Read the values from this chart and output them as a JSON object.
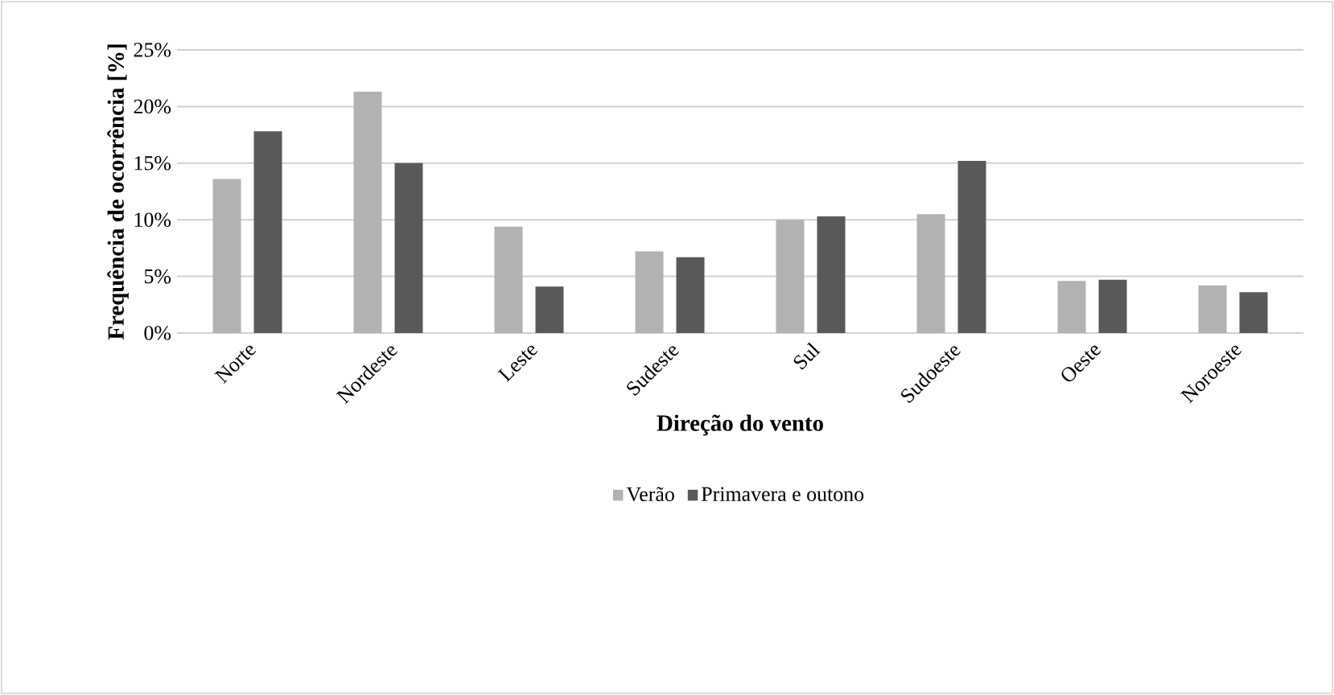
{
  "chart_data": {
    "type": "bar",
    "xlabel": "Direção do vento",
    "ylabel": "Frequência de ocorrência [%]",
    "categories": [
      "Norte",
      "Nordeste",
      "Leste",
      "Sudeste",
      "Sul",
      "Sudoeste",
      "Oeste",
      "Noroeste"
    ],
    "series": [
      {
        "name": "Verão",
        "color": "#b2b2b2",
        "values": [
          13.6,
          21.3,
          9.4,
          7.2,
          10.0,
          10.5,
          4.6,
          4.2
        ]
      },
      {
        "name": "Primavera e outono",
        "color": "#595959",
        "values": [
          17.8,
          15.0,
          4.1,
          6.7,
          10.3,
          15.2,
          4.7,
          3.6
        ]
      }
    ],
    "ylim": [
      0,
      25
    ],
    "yticks": [
      {
        "value": 0,
        "label": "0%"
      },
      {
        "value": 5,
        "label": "5%"
      },
      {
        "value": 10,
        "label": "10%"
      },
      {
        "value": 15,
        "label": "15%"
      },
      {
        "value": 20,
        "label": "20%"
      },
      {
        "value": 25,
        "label": "25%"
      }
    ],
    "grid": "y",
    "legend": "bottom"
  }
}
